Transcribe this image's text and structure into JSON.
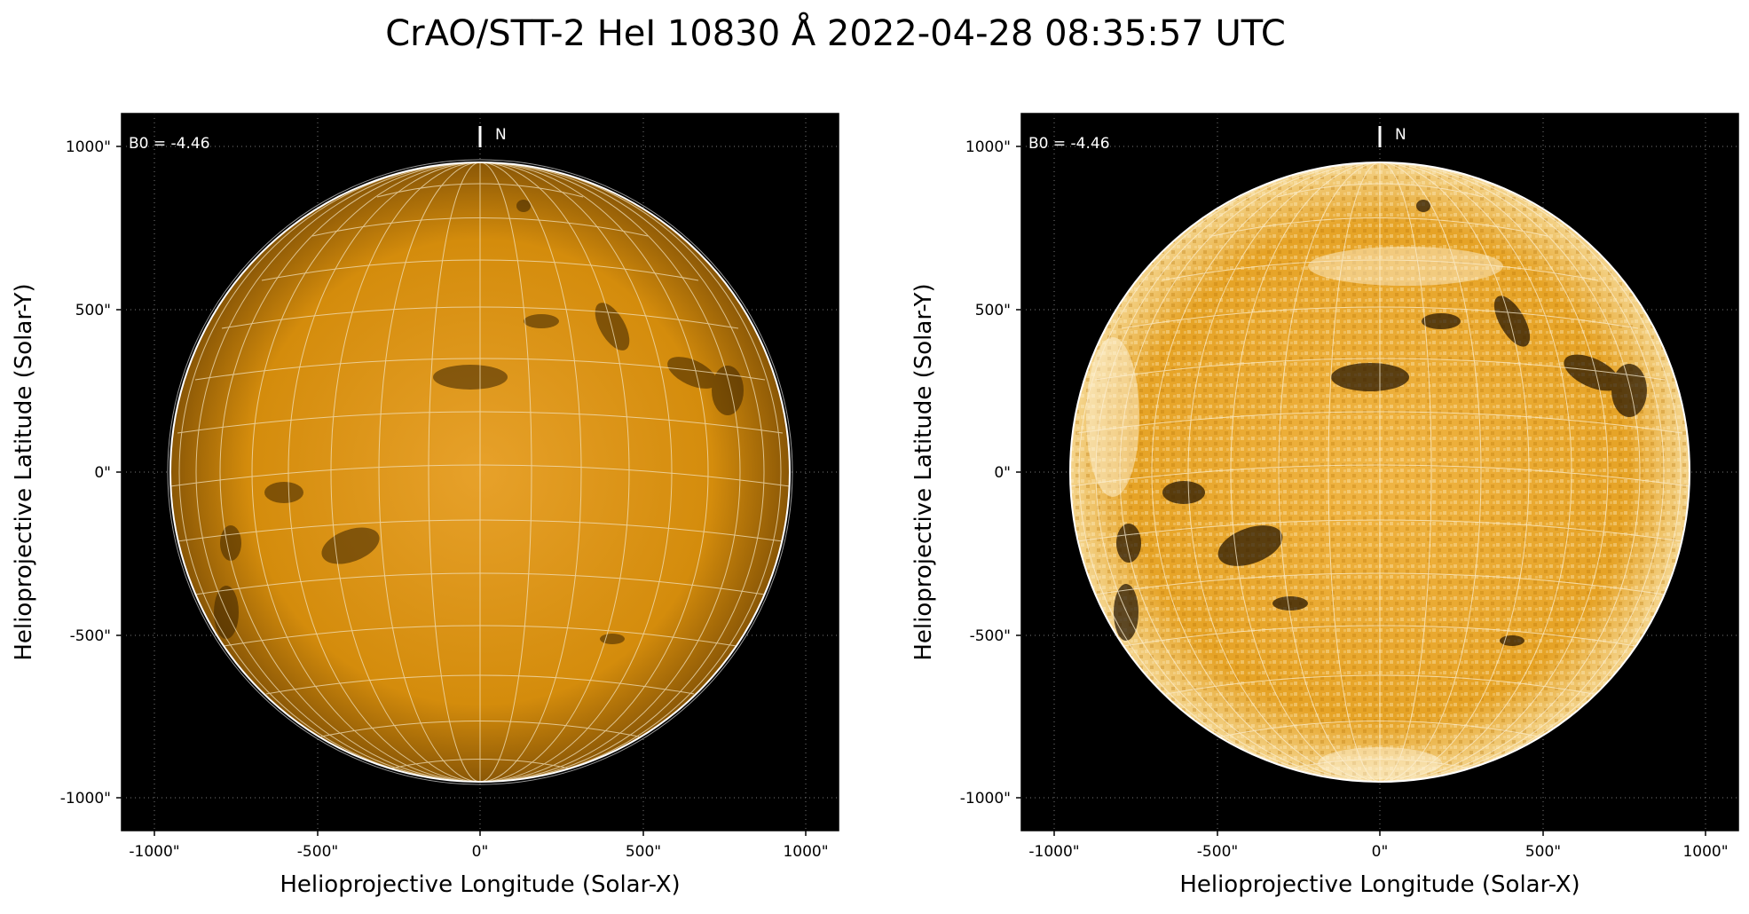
{
  "title": "CrAO/STT-2 HeI 10830 Å 2022-04-28 08:35:57 UTC",
  "panels": [
    {
      "panel": "left",
      "annotation": "B0 = -4.46",
      "north_label": "N",
      "xlabel": "Helioprojective Longitude (Solar-X)",
      "ylabel": "Helioprojective Latitude (Solar-Y)",
      "xticks": [
        "-1000\"",
        "-500\"",
        "0\"",
        "500\"",
        "1000\""
      ],
      "yticks": [
        "1000\"",
        "500\"",
        "0\"",
        "-500\"",
        "-1000\""
      ],
      "disk_color": "#d9900a",
      "background": "#000000"
    },
    {
      "panel": "right",
      "annotation": "B0 = -4.46",
      "north_label": "N",
      "xlabel": "Helioprojective Longitude (Solar-X)",
      "ylabel": "Helioprojective Latitude (Solar-Y)",
      "xticks": [
        "-1000\"",
        "-500\"",
        "0\"",
        "500\"",
        "1000\""
      ],
      "yticks": [
        "1000\"",
        "500\"",
        "0\"",
        "-500\"",
        "-1000\""
      ],
      "disk_color": "#e8a020",
      "background": "#000000"
    }
  ]
}
